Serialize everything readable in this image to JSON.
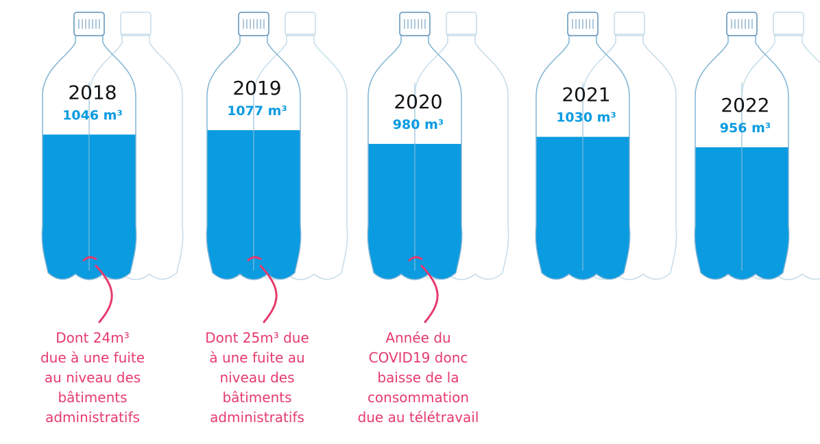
{
  "chart_data": {
    "type": "bar",
    "categories": [
      "2018",
      "2019",
      "2020",
      "2021",
      "2022"
    ],
    "values": [
      1046,
      1077,
      980,
      1030,
      956
    ],
    "value_labels": [
      "1046 m³",
      "1077 m³",
      "980 m³",
      "1030 m³",
      "956 m³"
    ],
    "color": "#0a9be0",
    "annotations": [
      [
        "Dont 24m³",
        "due à une fuite",
        "au niveau des",
        "bâtiments",
        "administratifs"
      ],
      [
        "Dont 25m³ due",
        "à une fuite au",
        "niveau des",
        "bâtiments",
        "administratifs"
      ],
      [
        "Année du",
        "COVID19 donc",
        "baisse de la",
        "consommation",
        "due au télétravail"
      ]
    ]
  }
}
